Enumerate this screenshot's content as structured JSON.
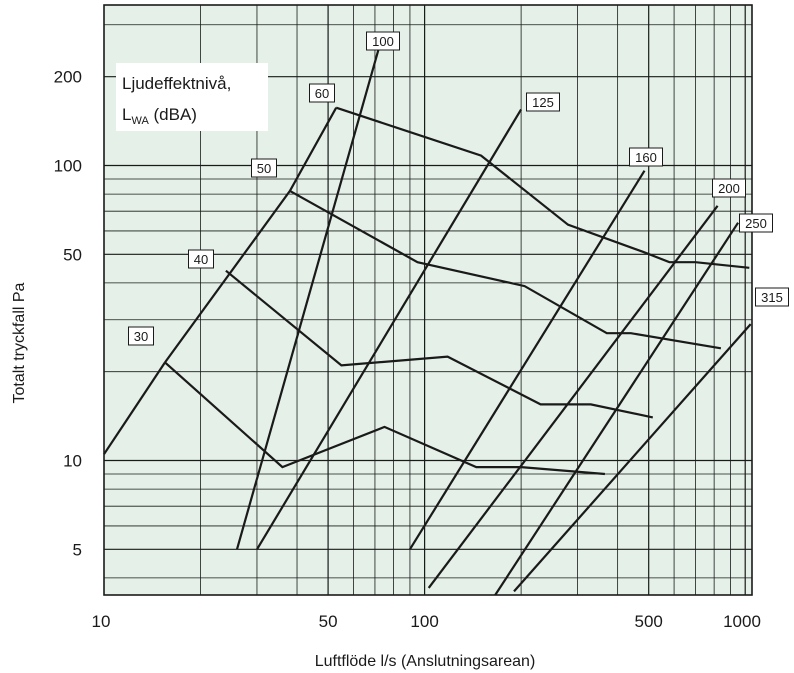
{
  "chart_data": {
    "type": "line",
    "xlabel": "Luftflöde l/s (Anslutningsarean)",
    "ylabel": "Totalt tryckfall Pa",
    "xscale": "log",
    "yscale": "log",
    "xlim": [
      10,
      1050
    ],
    "ylim": [
      3.5,
      350
    ],
    "x_ticks": [
      10,
      50,
      100,
      500,
      1000
    ],
    "x_tick_labels": [
      "10",
      "50",
      "100",
      "500",
      "1000"
    ],
    "y_ticks": [
      5,
      10,
      50,
      100,
      200
    ],
    "y_tick_labels": [
      "5",
      "10",
      "50",
      "100",
      "200"
    ],
    "grid": true,
    "background": "#e4f0e8",
    "legend_title": {
      "line1": "Ljudeffektnivå,",
      "prefix": "L",
      "sub": "WA",
      "suffix": " (dBA)"
    },
    "size_lines": [
      {
        "name": "100",
        "points": [
          [
            26,
            5
          ],
          [
            72,
            250
          ]
        ]
      },
      {
        "name": "125",
        "points": [
          [
            30,
            5
          ],
          [
            200,
            155
          ]
        ]
      },
      {
        "name": "160",
        "points": [
          [
            90,
            5
          ],
          [
            485,
            96
          ]
        ]
      },
      {
        "name": "200",
        "points": [
          [
            103,
            3.7
          ],
          [
            820,
            73
          ]
        ]
      },
      {
        "name": "250",
        "points": [
          [
            166,
            3.5
          ],
          [
            950,
            64
          ]
        ]
      },
      {
        "name": "315",
        "points": [
          [
            1040,
            29
          ]
        ]
      }
    ],
    "sound_lines": [
      {
        "name": "30",
        "points": [
          [
            15.5,
            21.5
          ],
          [
            36,
            9.5
          ],
          [
            75,
            13
          ],
          [
            145,
            9.5
          ],
          [
            200,
            9.5
          ],
          [
            365,
            9
          ]
        ]
      },
      {
        "name": "40",
        "points": [
          [
            24,
            44
          ],
          [
            55,
            21
          ],
          [
            118,
            22.5
          ],
          [
            230,
            15.5
          ],
          [
            330,
            15.5
          ],
          [
            515,
            14
          ]
        ]
      },
      {
        "name": "50",
        "points": [
          [
            38,
            82
          ],
          [
            95,
            47
          ],
          [
            205,
            39
          ],
          [
            370,
            27
          ],
          [
            440,
            27
          ],
          [
            840,
            24
          ]
        ]
      },
      {
        "name": "60",
        "points": [
          [
            53,
            157
          ],
          [
            150,
            108
          ],
          [
            280,
            63
          ],
          [
            480,
            51
          ],
          [
            580,
            47
          ],
          [
            700,
            47
          ],
          [
            1030,
            45
          ]
        ]
      }
    ],
    "sound_line_start": {
      "name": "30",
      "points": [
        [
          10,
          10.5
        ],
        [
          15.5,
          21.5
        ]
      ]
    }
  }
}
